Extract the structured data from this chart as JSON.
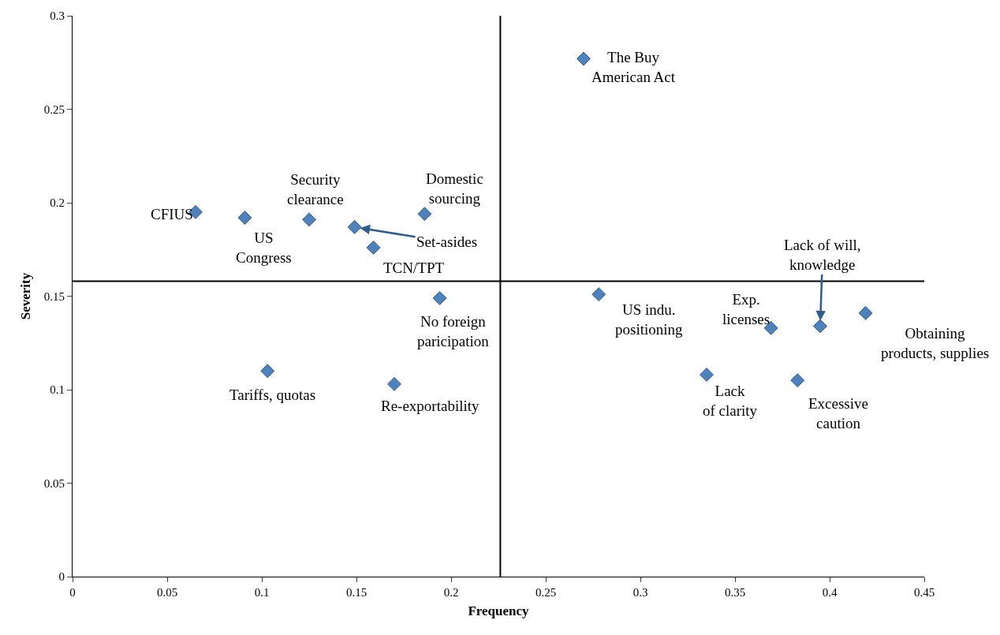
{
  "chart_data": {
    "type": "scatter",
    "xlabel": "Frequency",
    "ylabel": "Severity",
    "x": [
      0.065,
      0.091,
      0.125,
      0.149,
      0.159,
      0.186,
      0.194,
      0.103,
      0.17,
      0.27,
      0.278,
      0.335,
      0.369,
      0.395,
      0.383,
      0.419
    ],
    "values": [
      0.195,
      0.192,
      0.191,
      0.187,
      0.176,
      0.194,
      0.149,
      0.11,
      0.103,
      0.277,
      0.151,
      0.108,
      0.133,
      0.134,
      0.105,
      0.141
    ],
    "color": "#4f81bd",
    "marker": "diamond",
    "grid": false,
    "xlim": [
      0,
      0.45
    ],
    "xticks": [
      0,
      0.05,
      0.1,
      0.15,
      0.2,
      0.25,
      0.3,
      0.35,
      0.4,
      0.45
    ],
    "ylim": [
      0,
      0.3
    ],
    "yticks": [
      0,
      0.05,
      0.1,
      0.15,
      0.2,
      0.25,
      0.3
    ],
    "ref_lines": [
      {
        "axis": "x",
        "value": 0.226,
        "color": "#000000"
      },
      {
        "axis": "y",
        "value": 0.158,
        "color": "#000000"
      }
    ],
    "annotations": [
      {
        "text": "CFIUS",
        "x": 0.065,
        "y": 0.195
      },
      {
        "text": "US\nCongress",
        "x": 0.091,
        "y": 0.192
      },
      {
        "text": "Security\nclearance",
        "x": 0.125,
        "y": 0.191
      },
      {
        "text": "Set-asides",
        "x": 0.149,
        "y": 0.187
      },
      {
        "text": "TCN/TPT",
        "x": 0.159,
        "y": 0.176
      },
      {
        "text": "Domestic\nsourcing",
        "x": 0.186,
        "y": 0.194
      },
      {
        "text": "No foreign\nparicipation",
        "x": 0.194,
        "y": 0.149
      },
      {
        "text": "Tariffs, quotas",
        "x": 0.103,
        "y": 0.11
      },
      {
        "text": "Re-exportability",
        "x": 0.17,
        "y": 0.103
      },
      {
        "text": "The Buy\nAmerican Act",
        "x": 0.27,
        "y": 0.277
      },
      {
        "text": "US indu.\npositioning",
        "x": 0.278,
        "y": 0.151
      },
      {
        "text": "Lack\nof clarity",
        "x": 0.335,
        "y": 0.108
      },
      {
        "text": "Exp.\nlicenses",
        "x": 0.369,
        "y": 0.133
      },
      {
        "text": "Lack of will,\nknowledge",
        "x": 0.395,
        "y": 0.134
      },
      {
        "text": "Excessive\ncaution",
        "x": 0.383,
        "y": 0.105
      },
      {
        "text": "Obtaining\nproducts, supplies",
        "x": 0.419,
        "y": 0.141
      }
    ]
  }
}
